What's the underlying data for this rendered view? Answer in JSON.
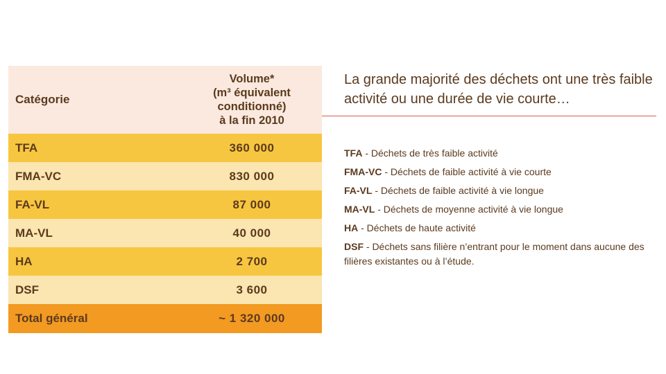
{
  "table": {
    "headers": {
      "category": "Catégorie",
      "volume_lines": [
        "Volume*",
        "(m³ équivalent",
        "conditionné)",
        "à la fin 2010"
      ]
    },
    "rows": [
      {
        "category": "TFA",
        "volume": "360 000"
      },
      {
        "category": "FMA-VC",
        "volume": "830 000"
      },
      {
        "category": "FA-VL",
        "volume": "87 000"
      },
      {
        "category": "MA-VL",
        "volume": "40 000"
      },
      {
        "category": "HA",
        "volume": "2 700"
      },
      {
        "category": "DSF",
        "volume": "3 600"
      }
    ],
    "total": {
      "category": "Total général",
      "volume": "~  1 320 000"
    }
  },
  "headline": "La grande majorité des déchets ont une très faible activité ou une durée de vie courte…",
  "legend": [
    {
      "abbr": "TFA",
      "text": " - Déchets de très faible activité"
    },
    {
      "abbr": "FMA-VC",
      "text": " - Déchets de faible activité à vie courte"
    },
    {
      "abbr": "FA-VL",
      "text": " - Déchets de faible activité à vie longue"
    },
    {
      "abbr": "MA-VL",
      "text": " - Déchets de moyenne activité à vie longue"
    },
    {
      "abbr": "HA",
      "text": " - Déchets de haute activité"
    },
    {
      "abbr": "DSF",
      "text": " - Déchets sans filière n’entrant pour le moment dans aucune des filières existantes ou à l’étude."
    }
  ],
  "colors": {
    "header_bg": "#fbe9df",
    "row_dark": "#f7c640",
    "row_light": "#fbe5b0",
    "total_bg": "#f39a22",
    "text": "#5b3a1e",
    "rule": "#e0574c"
  }
}
